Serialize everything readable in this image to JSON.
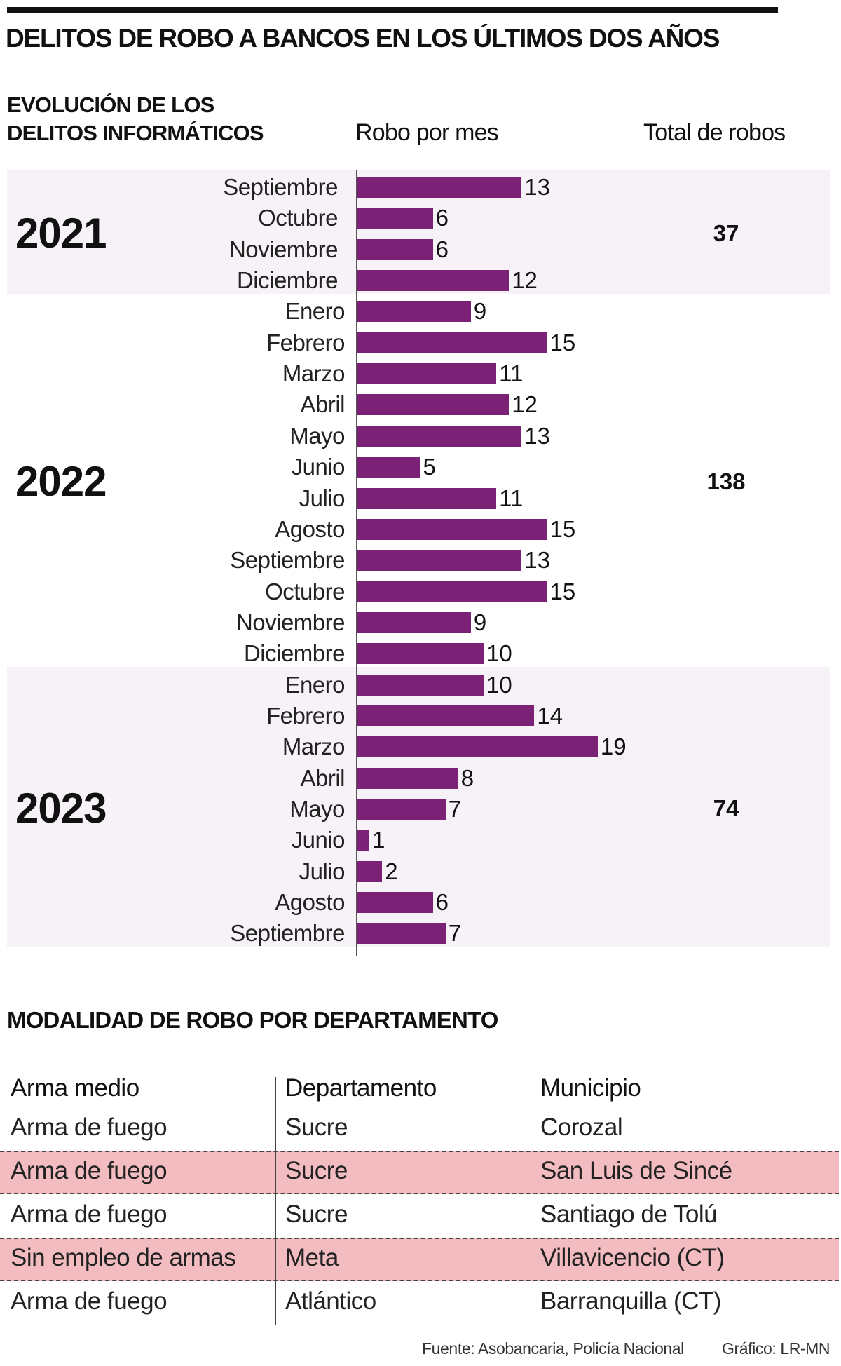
{
  "title": "DELITOS DE ROBO A BANCOS EN LOS ÚLTIMOS DOS AÑOS",
  "chart_data": {
    "type": "bar",
    "orientation": "horizontal",
    "title": "EVOLUCIÓN DE LOS DELITOS INFORMÁTICOS",
    "subtitle_line1": "EVOLUCIÓN DE LOS",
    "subtitle_line2": "DELITOS INFORMÁTICOS",
    "value_header": "Robo por mes",
    "total_header": "Total de robos",
    "bar_color": "#7b2277",
    "band_color": "#f7f2f8",
    "xlim": [
      0,
      19
    ],
    "grid": false,
    "groups": [
      {
        "year": "2021",
        "total": "37",
        "shaded": true,
        "months": [
          "Septiembre",
          "Octubre",
          "Noviembre",
          "Diciembre"
        ],
        "values": [
          13,
          6,
          6,
          12
        ]
      },
      {
        "year": "2022",
        "total": "138",
        "shaded": false,
        "months": [
          "Enero",
          "Febrero",
          "Marzo",
          "Abril",
          "Mayo",
          "Junio",
          "Julio",
          "Agosto",
          "Septiembre",
          "Octubre",
          "Noviembre",
          "Diciembre"
        ],
        "values": [
          9,
          15,
          11,
          12,
          13,
          5,
          11,
          15,
          13,
          15,
          9,
          10
        ]
      },
      {
        "year": "2023",
        "total": "74",
        "shaded": true,
        "months": [
          "Enero",
          "Febrero",
          "Marzo",
          "Abril",
          "Mayo",
          "Junio",
          "Julio",
          "Agosto",
          "Septiembre"
        ],
        "values": [
          10,
          14,
          19,
          8,
          7,
          1,
          2,
          6,
          7
        ]
      }
    ]
  },
  "table": {
    "title": "MODALIDAD DE ROBO POR DEPARTAMENTO",
    "headers": [
      "Arma medio",
      "Departamento",
      "Municipio"
    ],
    "highlight_color": "#f2bcc0",
    "rows": [
      [
        "Arma de fuego",
        "Sucre",
        "Corozal"
      ],
      [
        "Arma de fuego",
        "Sucre",
        "San Luis de Sincé"
      ],
      [
        "Arma de fuego",
        "Sucre",
        "Santiago de Tolú"
      ],
      [
        "Sin empleo de armas",
        "Meta",
        "Villavicencio (CT)"
      ],
      [
        "Arma de fuego",
        "Atlántico",
        "Barranquilla (CT)"
      ]
    ],
    "highlighted_rows": [
      1,
      3
    ]
  },
  "footer": {
    "source": "Fuente: Asobancaria, Policía Nacional",
    "credit": "Gráfico: LR-MN"
  }
}
